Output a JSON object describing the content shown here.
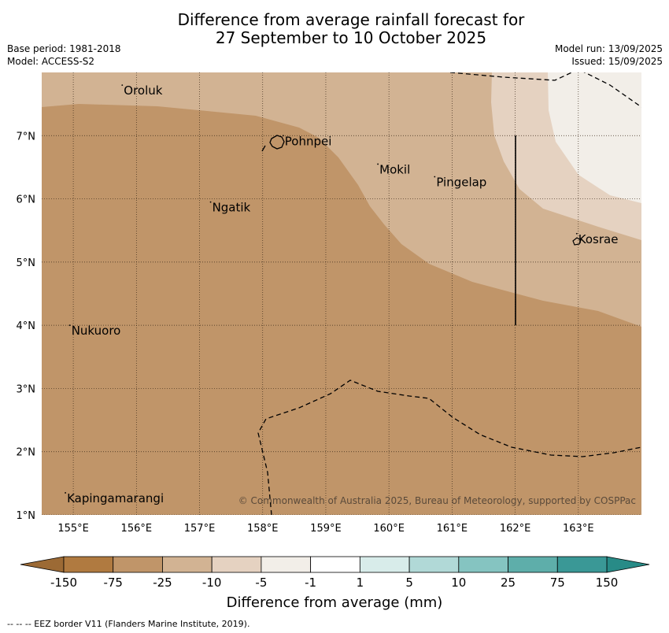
{
  "header": {
    "title_line1": "Difference from average rainfall forecast for",
    "title_line2": "27 September to 10 October 2025",
    "base_period": "Base period: 1981-2018",
    "model": "Model: ACCESS-S2",
    "model_run": "Model run: 13/09/2025",
    "issued": "Issued: 15/09/2025"
  },
  "map": {
    "lon_range": [
      154.5,
      164.0
    ],
    "lat_range": [
      1.0,
      8.0
    ],
    "grid": true,
    "lon_ticks": [
      "155°E",
      "156°E",
      "157°E",
      "158°E",
      "159°E",
      "160°E",
      "161°E",
      "162°E",
      "163°E"
    ],
    "lat_ticks": [
      "7°N",
      "6°N",
      "5°N",
      "4°N",
      "3°N",
      "2°N",
      "1°N"
    ],
    "places": [
      {
        "name": "Oroluk",
        "lon": 155.8,
        "lat": 7.65
      },
      {
        "name": "Pohnpei",
        "lon": 158.35,
        "lat": 6.85
      },
      {
        "name": "Mokil",
        "lon": 159.85,
        "lat": 6.4
      },
      {
        "name": "Pingelap",
        "lon": 160.75,
        "lat": 6.2
      },
      {
        "name": "Ngatik",
        "lon": 157.2,
        "lat": 5.8
      },
      {
        "name": "Kosrae",
        "lon": 163.0,
        "lat": 5.3
      },
      {
        "name": "Nukuoro",
        "lon": 154.97,
        "lat": 3.85
      },
      {
        "name": "Kapingamarangi",
        "lon": 154.9,
        "lat": 1.2
      }
    ],
    "colors": {
      "less_than_-25": "#c09569",
      "-25_to_-10": "#d2b393",
      "-10_to_-5": "#e5d2c1",
      "-5_to_-1": "#f2eee8"
    },
    "copyright": "© Commonwealth of Australia 2025, Bureau of Meteorology, supported by COSPPac"
  },
  "colorbar": {
    "title": "Difference from average (mm)",
    "labels": [
      "-150",
      "-75",
      "-25",
      "-10",
      "-5",
      "-1",
      "1",
      "5",
      "10",
      "25",
      "75",
      "150"
    ],
    "colors": [
      "#b07a40",
      "#c09569",
      "#d2b393",
      "#e5d2c1",
      "#f2eee8",
      "#ffffff",
      "#d8ecea",
      "#b1d9d7",
      "#85c4c1",
      "#5eaeaa",
      "#3a9896"
    ],
    "extend_low_color": "#9c6a35",
    "extend_high_color": "#288b87"
  },
  "footnote": "--  --  -- EEZ border V11 (Flanders Marine Institute, 2019)."
}
